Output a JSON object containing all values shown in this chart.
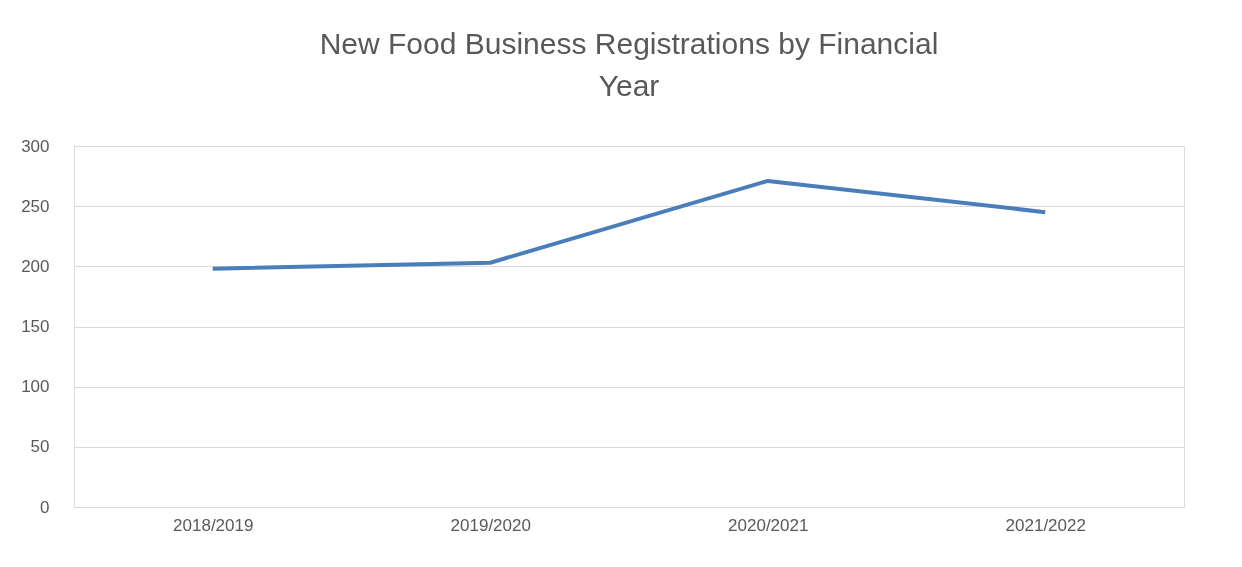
{
  "chart_data": {
    "type": "line",
    "title": "New Food Business Registrations by Financial Year",
    "categories": [
      "2018/2019",
      "2019/2020",
      "2020/2021",
      "2021/2022"
    ],
    "series": [
      {
        "color": "#4a7ebb",
        "values": [
          198,
          203,
          271,
          245
        ]
      }
    ],
    "ylim": [
      0,
      300
    ],
    "yticks": [
      0,
      50,
      100,
      150,
      200,
      250,
      300
    ],
    "grid": "y",
    "legend": false,
    "marker": "none",
    "line_style": "solid"
  }
}
